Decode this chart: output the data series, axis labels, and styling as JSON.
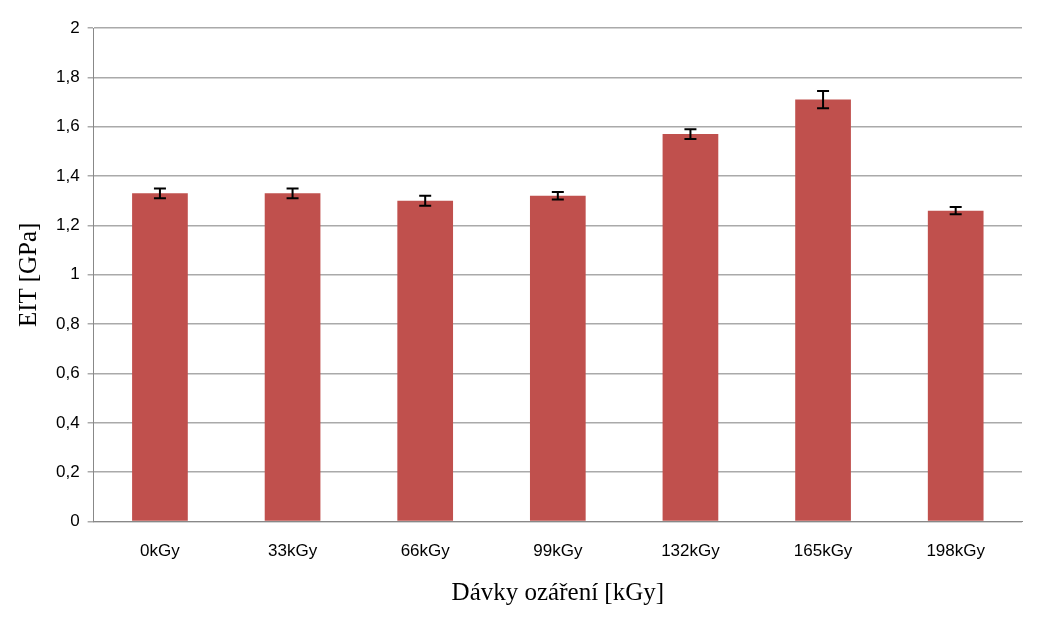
{
  "chart_data": {
    "type": "bar",
    "xlabel": "Dávky ozáření [kGy]",
    "ylabel": "EIT [GPa]",
    "categories": [
      "0kGy",
      "33kGy",
      "66kGy",
      "99kGy",
      "132kGy",
      "165kGy",
      "198kGy"
    ],
    "values": [
      1.33,
      1.33,
      1.3,
      1.32,
      1.57,
      1.71,
      1.26
    ],
    "errors": [
      0.02,
      0.02,
      0.02,
      0.015,
      0.02,
      0.035,
      0.015
    ],
    "color": "#c0504d",
    "ylim": [
      0,
      2
    ],
    "yticks": [
      0,
      {
        "value": 0.2,
        "label": "0,2"
      },
      {
        "value": 0.4,
        "label": "0,4"
      },
      {
        "value": 0.6,
        "label": "0,6"
      },
      {
        "value": 0.8,
        "label": "0,8"
      },
      1,
      {
        "value": 1.2,
        "label": "1,2"
      },
      {
        "value": 1.4,
        "label": "1,4"
      },
      {
        "value": 1.6,
        "label": "1,6"
      },
      {
        "value": 1.8,
        "label": "1,8"
      },
      2
    ],
    "grid": "y",
    "legend": false
  }
}
